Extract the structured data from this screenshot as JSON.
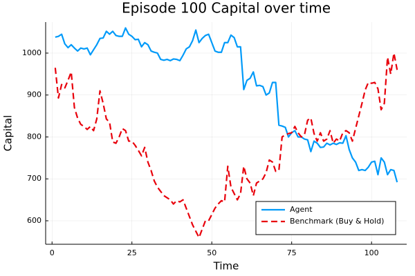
{
  "chart_data": {
    "type": "line",
    "title": "Episode 100 Capital over time",
    "x_label": "Time",
    "y_label": "Capital",
    "x": [
      1,
      2,
      3,
      4,
      5,
      6,
      7,
      8,
      9,
      10,
      11,
      12,
      13,
      14,
      15,
      16,
      17,
      18,
      19,
      20,
      21,
      22,
      23,
      24,
      25,
      26,
      27,
      28,
      29,
      30,
      31,
      32,
      33,
      34,
      35,
      36,
      37,
      38,
      39,
      40,
      41,
      42,
      43,
      44,
      45,
      46,
      47,
      48,
      49,
      50,
      51,
      52,
      53,
      54,
      55,
      56,
      57,
      58,
      59,
      60,
      61,
      62,
      63,
      64,
      65,
      66,
      67,
      68,
      69,
      70,
      71,
      72,
      73,
      74,
      75,
      76,
      77,
      78,
      79,
      80,
      81,
      82,
      83,
      84,
      85,
      86,
      87,
      88,
      89,
      90,
      91,
      92,
      93,
      94,
      95,
      96,
      97,
      98,
      99,
      100,
      101,
      102,
      103,
      104,
      105,
      106,
      107,
      108
    ],
    "series": [
      {
        "name": "Agent",
        "color": "#009af9",
        "linestyle": "solid",
        "values": [
          1038,
          1040,
          1045,
          1022,
          1013,
          1020,
          1012,
          1005,
          1012,
          1010,
          1012,
          996,
          1008,
          1020,
          1035,
          1036,
          1052,
          1045,
          1052,
          1042,
          1040,
          1040,
          1060,
          1045,
          1040,
          1032,
          1033,
          1015,
          1025,
          1020,
          1005,
          1002,
          1000,
          985,
          983,
          985,
          982,
          986,
          985,
          982,
          995,
          1010,
          1015,
          1030,
          1055,
          1025,
          1035,
          1042,
          1045,
          1025,
          1005,
          1002,
          1002,
          1025,
          1025,
          1043,
          1037,
          1015,
          1015,
          913,
          935,
          940,
          955,
          922,
          923,
          920,
          900,
          905,
          930,
          930,
          828,
          826,
          823,
          800,
          810,
          815,
          800,
          800,
          795,
          793,
          765,
          790,
          785,
          775,
          776,
          785,
          781,
          785,
          782,
          786,
          785,
          803,
          770,
          750,
          740,
          720,
          722,
          720,
          728,
          740,
          742,
          710,
          750,
          740,
          710,
          722,
          720,
          692
        ]
      },
      {
        "name": "Benchmark (Buy & Hold)",
        "color": "#e8000b",
        "linestyle": "dashed",
        "values": [
          965,
          893,
          925,
          917,
          935,
          955,
          870,
          845,
          830,
          825,
          818,
          825,
          815,
          843,
          910,
          880,
          843,
          835,
          788,
          785,
          800,
          820,
          815,
          790,
          790,
          780,
          768,
          755,
          775,
          740,
          720,
          695,
          680,
          670,
          660,
          655,
          650,
          640,
          648,
          645,
          650,
          630,
          610,
          590,
          575,
          560,
          580,
          600,
          600,
          615,
          630,
          640,
          648,
          645,
          730,
          680,
          665,
          650,
          665,
          730,
          700,
          690,
          660,
          690,
          695,
          700,
          715,
          745,
          740,
          718,
          720,
          800,
          805,
          808,
          810,
          825,
          810,
          800,
          805,
          840,
          845,
          808,
          790,
          810,
          790,
          795,
          815,
          785,
          795,
          790,
          810,
          815,
          810,
          790,
          820,
          850,
          880,
          912,
          930,
          928,
          930,
          915,
          865,
          880,
          990,
          950,
          1000,
          960
        ]
      }
    ],
    "xlim": [
      -2,
      111
    ],
    "ylim": [
      544,
      1074
    ],
    "xticks": [
      0,
      25,
      50,
      75,
      100
    ],
    "yticks": [
      600,
      700,
      800,
      900,
      1000
    ],
    "grid": true,
    "legend": "bottom-right"
  }
}
